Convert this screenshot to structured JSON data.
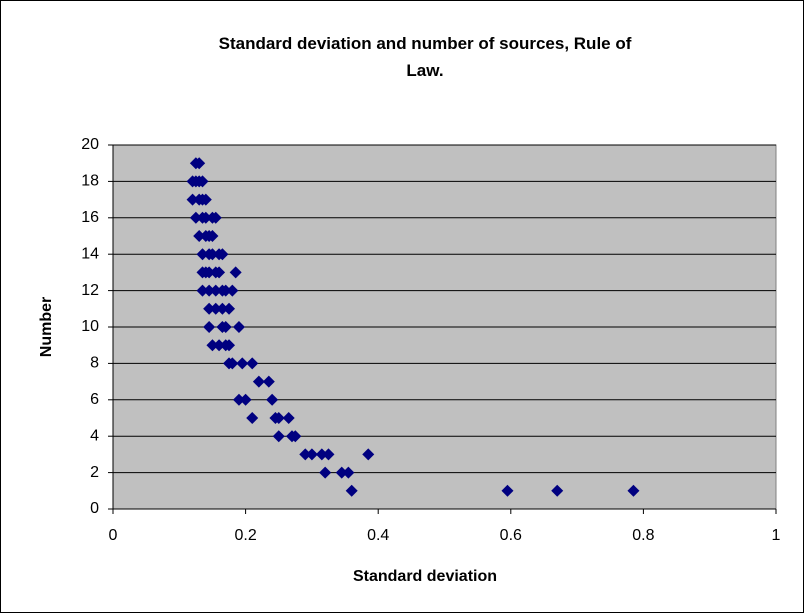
{
  "chart_data": {
    "type": "scatter",
    "title": "Standard deviation and number of sources, Rule of Law.",
    "x_label": "Standard deviation",
    "y_label": "Number",
    "color": "#000080",
    "plot_background": "#c0c0c0",
    "grid": true,
    "xlim": [
      0,
      1
    ],
    "xticks": [
      0,
      0.2,
      0.4,
      0.6,
      0.8,
      1
    ],
    "ylim": [
      0,
      20
    ],
    "yticks": [
      0,
      2,
      4,
      6,
      8,
      10,
      12,
      14,
      16,
      18,
      20
    ],
    "x": [
      0.125,
      0.13,
      0.12,
      0.125,
      0.13,
      0.135,
      0.12,
      0.13,
      0.135,
      0.14,
      0.125,
      0.135,
      0.14,
      0.15,
      0.155,
      0.13,
      0.14,
      0.145,
      0.15,
      0.135,
      0.145,
      0.15,
      0.16,
      0.165,
      0.135,
      0.14,
      0.145,
      0.155,
      0.16,
      0.185,
      0.135,
      0.145,
      0.155,
      0.165,
      0.17,
      0.18,
      0.145,
      0.155,
      0.165,
      0.175,
      0.145,
      0.165,
      0.17,
      0.19,
      0.15,
      0.16,
      0.17,
      0.175,
      0.175,
      0.18,
      0.195,
      0.21,
      0.22,
      0.235,
      0.19,
      0.2,
      0.24,
      0.21,
      0.245,
      0.25,
      0.265,
      0.25,
      0.27,
      0.275,
      0.29,
      0.3,
      0.315,
      0.325,
      0.385,
      0.32,
      0.345,
      0.355,
      0.36,
      0.595,
      0.67,
      0.785
    ],
    "y": [
      19,
      19,
      18,
      18,
      18,
      18,
      17,
      17,
      17,
      17,
      16,
      16,
      16,
      16,
      16,
      15,
      15,
      15,
      15,
      14,
      14,
      14,
      14,
      14,
      13,
      13,
      13,
      13,
      13,
      13,
      12,
      12,
      12,
      12,
      12,
      12,
      11,
      11,
      11,
      11,
      10,
      10,
      10,
      10,
      9,
      9,
      9,
      9,
      8,
      8,
      8,
      8,
      7,
      7,
      6,
      6,
      6,
      5,
      5,
      5,
      5,
      4,
      4,
      4,
      3,
      3,
      3,
      3,
      3,
      2,
      2,
      2,
      1,
      1,
      1,
      1
    ]
  }
}
